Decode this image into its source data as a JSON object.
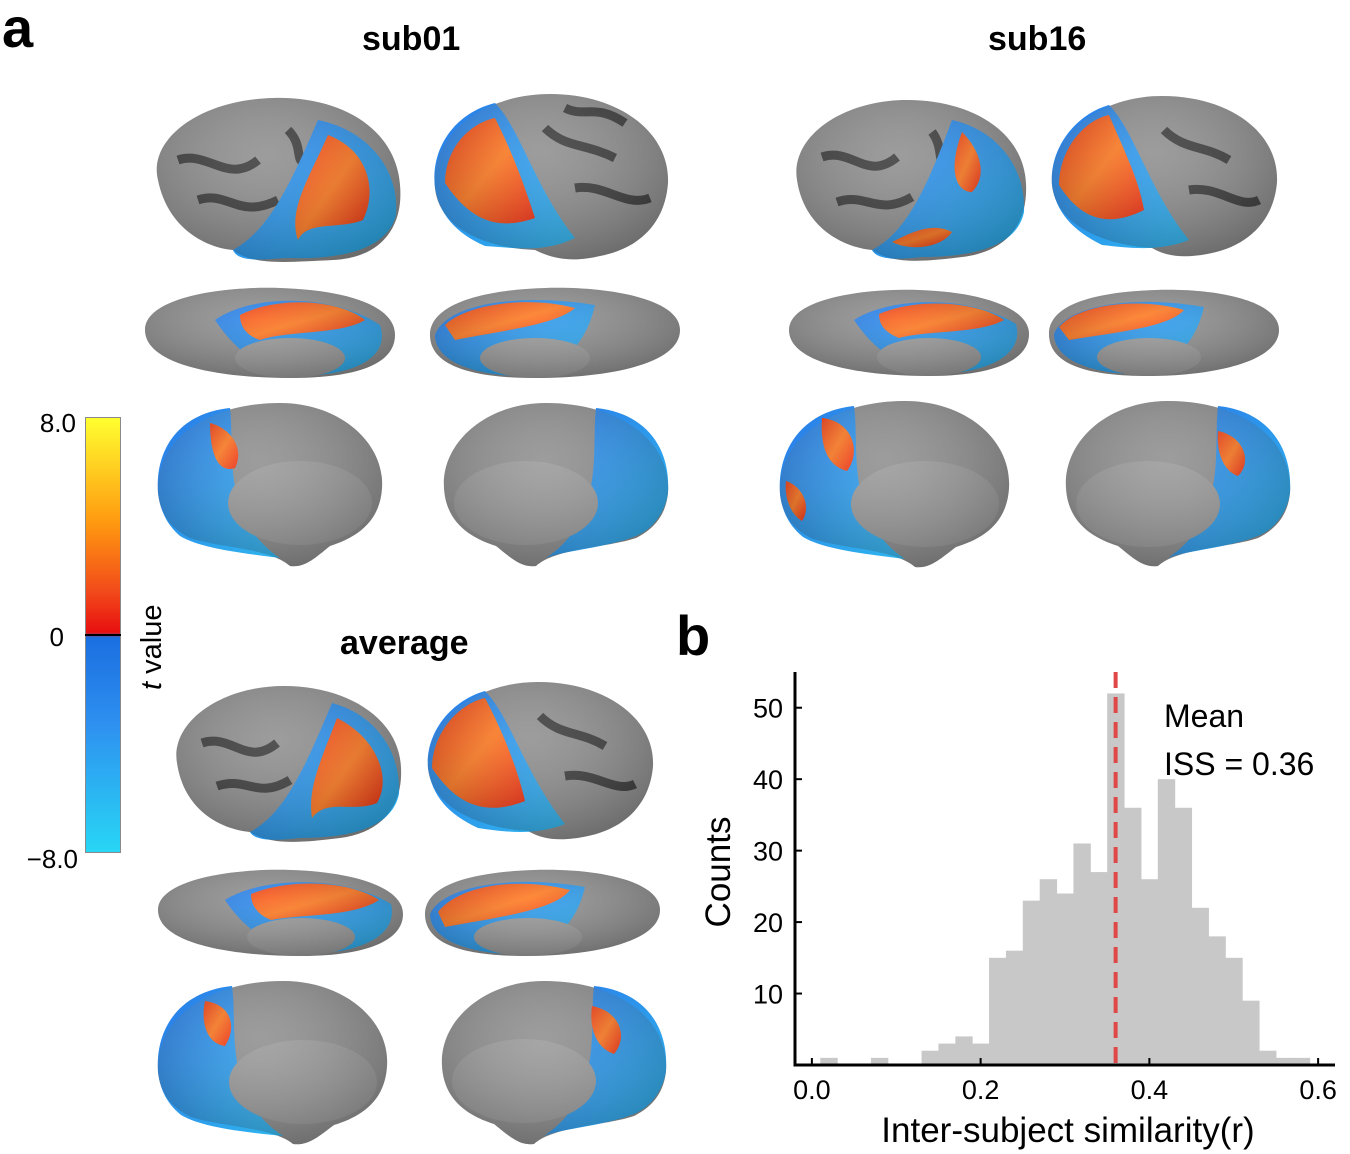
{
  "panels": {
    "a": "a",
    "b": "b"
  },
  "subjects": {
    "left": "sub01",
    "right": "sub16",
    "bottom": "average"
  },
  "colorbar": {
    "max_label": "8.0",
    "zero_label": "0",
    "min_label": "−8.0",
    "label_italic": "t",
    "label_rest": " value",
    "colors": {
      "pos_high": "#ffff30",
      "pos_mid": "#ff9a10",
      "pos_low": "#e81010",
      "neg_low": "#1a6fe0",
      "neg_high": "#28d6f4"
    }
  },
  "chart_data": {
    "type": "bar",
    "title": "",
    "xlabel": "Inter-subject similarity(r)",
    "ylabel": "Counts",
    "xlim": [
      -0.02,
      0.62
    ],
    "ylim": [
      0,
      55
    ],
    "xticks": [
      "0.0",
      "0.2",
      "0.4",
      "0.6"
    ],
    "xtick_values": [
      0.0,
      0.2,
      0.4,
      0.6
    ],
    "yticks": [
      "10",
      "20",
      "30",
      "40",
      "50"
    ],
    "ytick_values": [
      10,
      20,
      30,
      40,
      50
    ],
    "bin_width": 0.02,
    "bin_starts": [
      0.01,
      0.07,
      0.13,
      0.15,
      0.17,
      0.19,
      0.21,
      0.23,
      0.25,
      0.27,
      0.29,
      0.31,
      0.33,
      0.35,
      0.37,
      0.39,
      0.41,
      0.43,
      0.45,
      0.47,
      0.49,
      0.51,
      0.53,
      0.55,
      0.57
    ],
    "counts": [
      1,
      1,
      2,
      3,
      4,
      3,
      15,
      16,
      23,
      26,
      24,
      31,
      27,
      52,
      36,
      26,
      40,
      36,
      22,
      18,
      15,
      9,
      2,
      1,
      1
    ],
    "bar_color": "#c8c8c8",
    "mean_value": 0.36,
    "mean_line_color": "#e04848",
    "annotation_line1": "Mean",
    "annotation_line2": "ISS = 0.36"
  }
}
